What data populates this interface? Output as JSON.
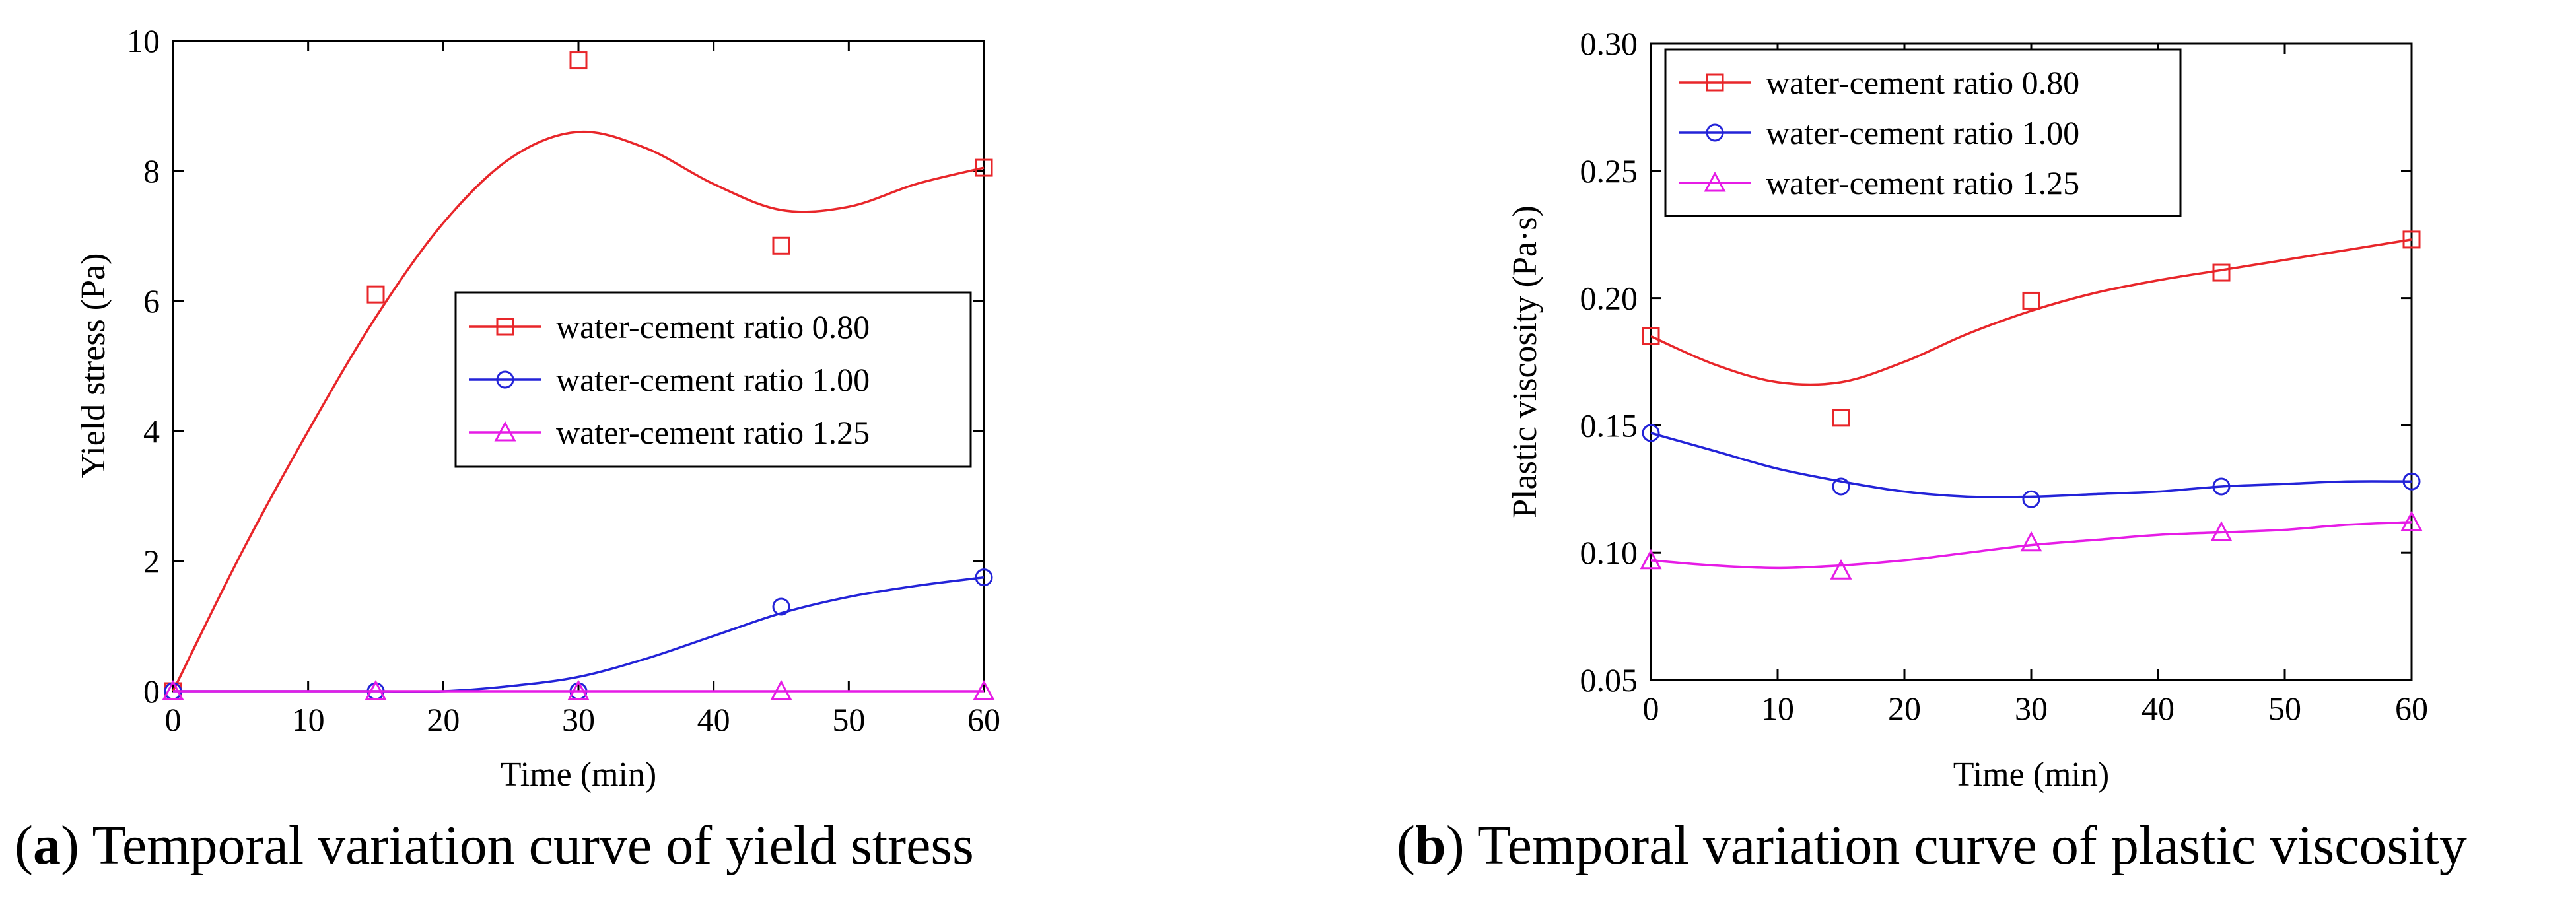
{
  "chart_data": [
    {
      "type": "line",
      "title": "",
      "xlabel": "Time (min)",
      "ylabel": "Yield stress (Pa)",
      "xlim": [
        0,
        60
      ],
      "ylim": [
        0,
        10
      ],
      "xticks": [
        "0",
        "10",
        "20",
        "30",
        "40",
        "50",
        "60"
      ],
      "yticks": [
        "0",
        "2",
        "4",
        "6",
        "8",
        "10"
      ],
      "legend_position": "middle-right",
      "x": [
        0,
        15,
        30,
        45,
        60
      ],
      "series": [
        {
          "name": "water-cement ratio 0.80",
          "color": "#e8262a",
          "marker": "square",
          "values": [
            0,
            6.1,
            9.7,
            6.85,
            8.05
          ],
          "fit_x": [
            0,
            5,
            10,
            15,
            20,
            25,
            30,
            35,
            40,
            45,
            50,
            55,
            60
          ],
          "fit_y": [
            0,
            2.1,
            4.0,
            5.75,
            7.2,
            8.2,
            8.6,
            8.35,
            7.8,
            7.4,
            7.45,
            7.8,
            8.05
          ]
        },
        {
          "name": "water-cement ratio 1.00",
          "color": "#2323d8",
          "marker": "circle",
          "values": [
            0,
            0,
            0,
            1.3,
            1.75
          ],
          "fit_x": [
            0,
            5,
            10,
            15,
            20,
            25,
            30,
            35,
            40,
            45,
            50,
            55,
            60
          ],
          "fit_y": [
            0,
            0,
            0,
            0,
            0,
            0.08,
            0.22,
            0.5,
            0.85,
            1.2,
            1.45,
            1.62,
            1.75
          ]
        },
        {
          "name": "water-cement ratio 1.25",
          "color": "#e61ce6",
          "marker": "triangle",
          "values": [
            0,
            0,
            0,
            0,
            0
          ],
          "fit_x": [
            0,
            60
          ],
          "fit_y": [
            0,
            0
          ]
        }
      ]
    },
    {
      "type": "line",
      "title": "",
      "xlabel": "Time (min)",
      "ylabel": "Plastic viscosity (Pa·s)",
      "xlim": [
        0,
        60
      ],
      "ylim": [
        0.05,
        0.3
      ],
      "xticks": [
        "0",
        "10",
        "20",
        "30",
        "40",
        "50",
        "60"
      ],
      "yticks": [
        "0.05",
        "0.10",
        "0.15",
        "0.20",
        "0.25",
        "0.30"
      ],
      "legend_position": "top-left",
      "x": [
        0,
        15,
        30,
        45,
        60
      ],
      "series": [
        {
          "name": "water-cement ratio 0.80",
          "color": "#e8262a",
          "marker": "square",
          "values": [
            0.185,
            0.153,
            0.199,
            0.21,
            0.223
          ],
          "fit_x": [
            0,
            5,
            10,
            15,
            20,
            25,
            30,
            35,
            40,
            45,
            50,
            55,
            60
          ],
          "fit_y": [
            0.185,
            0.174,
            0.167,
            0.167,
            0.175,
            0.186,
            0.195,
            0.202,
            0.207,
            0.211,
            0.215,
            0.219,
            0.223
          ]
        },
        {
          "name": "water-cement ratio 1.00",
          "color": "#2323d8",
          "marker": "circle",
          "values": [
            0.147,
            0.126,
            0.121,
            0.126,
            0.128
          ],
          "fit_x": [
            0,
            5,
            10,
            15,
            20,
            25,
            30,
            35,
            40,
            45,
            50,
            55,
            60
          ],
          "fit_y": [
            0.147,
            0.14,
            0.133,
            0.128,
            0.124,
            0.122,
            0.122,
            0.123,
            0.124,
            0.126,
            0.127,
            0.128,
            0.128
          ]
        },
        {
          "name": "water-cement ratio 1.25",
          "color": "#e61ce6",
          "marker": "triangle",
          "values": [
            0.097,
            0.093,
            0.104,
            0.108,
            0.112
          ],
          "fit_x": [
            0,
            5,
            10,
            15,
            20,
            25,
            30,
            35,
            40,
            45,
            50,
            55,
            60
          ],
          "fit_y": [
            0.097,
            0.095,
            0.094,
            0.095,
            0.097,
            0.1,
            0.103,
            0.105,
            0.107,
            0.108,
            0.109,
            0.111,
            0.112
          ]
        }
      ]
    }
  ],
  "captions": [
    {
      "letter": "a",
      "text": " Temporal variation curve of yield stress"
    },
    {
      "letter": "b",
      "text": " Temporal variation curve of plastic viscosity"
    }
  ]
}
